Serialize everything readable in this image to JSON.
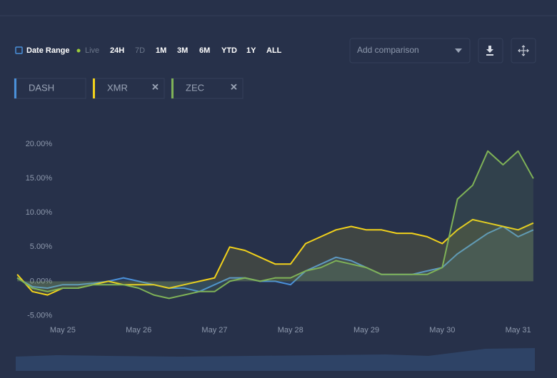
{
  "toolbar": {
    "date_range": "Date Range",
    "live": "Live",
    "ranges": [
      "24H",
      "7D",
      "1M",
      "3M",
      "6M",
      "YTD",
      "1Y",
      "ALL"
    ],
    "comparison_placeholder": "Add comparison"
  },
  "chart_data": {
    "type": "line",
    "x": [
      24.4,
      24.6,
      24.8,
      25.0,
      25.2,
      25.4,
      25.6,
      25.8,
      26.0,
      26.2,
      26.4,
      26.6,
      26.8,
      27.0,
      27.2,
      27.4,
      27.6,
      27.8,
      28.0,
      28.2,
      28.4,
      28.6,
      28.8,
      29.0,
      29.2,
      29.4,
      29.6,
      29.8,
      30.0,
      30.2,
      30.4,
      30.6,
      30.8,
      31.0,
      31.2
    ],
    "series": [
      {
        "name": "DASH",
        "color": "#4a90d9",
        "values": [
          0.5,
          -0.8,
          -1,
          -0.5,
          -0.5,
          -0.3,
          0,
          0.5,
          0,
          -0.5,
          -1,
          -1,
          -1.5,
          -0.5,
          0.5,
          0.5,
          0,
          0,
          -0.5,
          1.5,
          2.5,
          3.5,
          3,
          2,
          1,
          1,
          1,
          1.5,
          2,
          4,
          5.5,
          7,
          8,
          6.5,
          7.5
        ]
      },
      {
        "name": "XMR",
        "color": "#f2d21b",
        "values": [
          1,
          -1.5,
          -2,
          -1,
          -1,
          -0.5,
          0,
          -0.5,
          -0.5,
          -0.5,
          -1,
          -0.5,
          0,
          0.5,
          5,
          4.5,
          3.5,
          2.5,
          2.5,
          5.5,
          6.5,
          7.5,
          8,
          7.5,
          7.5,
          7,
          7,
          6.5,
          5.5,
          7.5,
          9,
          8.5,
          8,
          7.5,
          8.5
        ]
      },
      {
        "name": "ZEC",
        "color": "#7fb257",
        "values": [
          0.5,
          -1,
          -1.5,
          -1,
          -1,
          -0.5,
          -0.5,
          -0.5,
          -1,
          -2,
          -2.5,
          -2,
          -1.5,
          -1.5,
          0,
          0.5,
          0,
          0.5,
          0.5,
          1.5,
          2,
          3,
          2.5,
          2,
          1,
          1,
          1,
          1,
          2,
          12,
          14,
          19,
          17,
          19,
          15
        ]
      }
    ],
    "xlim": [
      24.38,
      31.22
    ],
    "xticks": [
      {
        "value": 25,
        "label": "May 25"
      },
      {
        "value": 26,
        "label": "May 26"
      },
      {
        "value": 27,
        "label": "May 27"
      },
      {
        "value": 28,
        "label": "May 28"
      },
      {
        "value": 29,
        "label": "May 29"
      },
      {
        "value": 30,
        "label": "May 30"
      },
      {
        "value": 31,
        "label": "May 31"
      }
    ],
    "ylim": [
      -6,
      22
    ],
    "yticks": [
      {
        "value": -5,
        "label": "-5.00%"
      },
      {
        "value": 0,
        "label": "0.00%"
      },
      {
        "value": 5,
        "label": "5.00%"
      },
      {
        "value": 10,
        "label": "10.00%"
      },
      {
        "value": 15,
        "label": "15.00%"
      },
      {
        "value": 20,
        "label": "20.00%"
      }
    ],
    "grid": false
  }
}
